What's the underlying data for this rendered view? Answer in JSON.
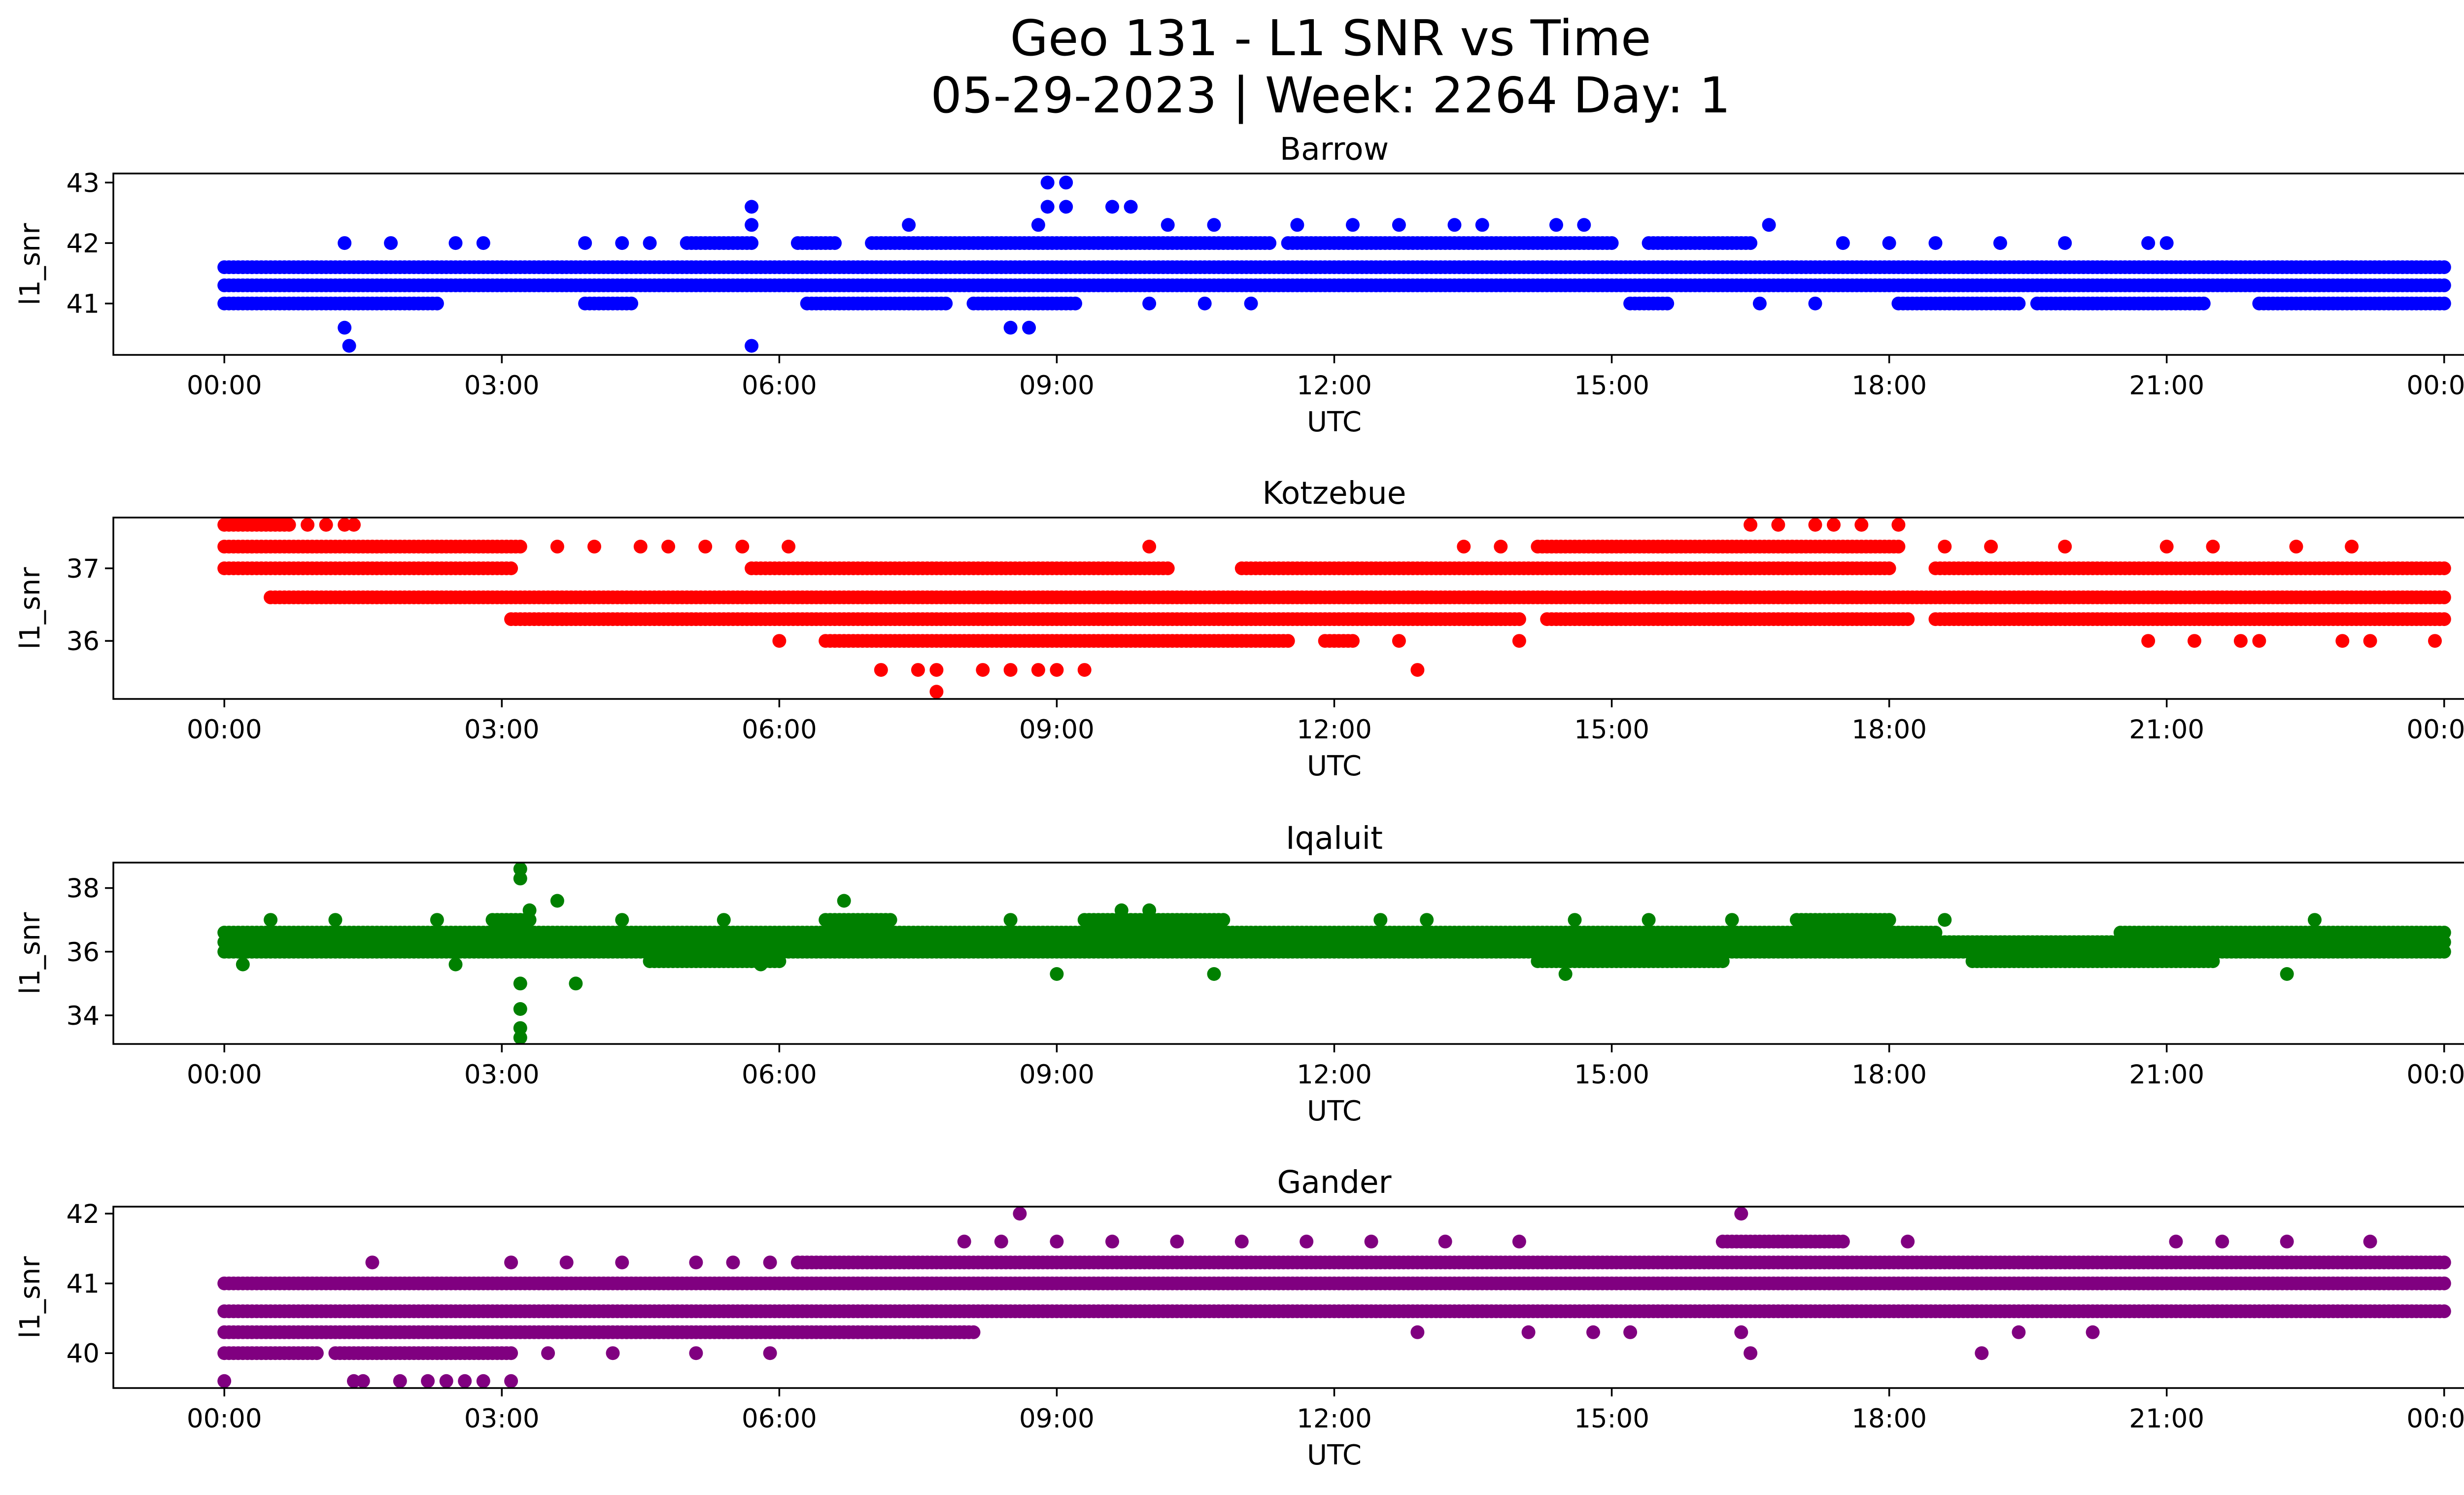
{
  "figure": {
    "title_line1": "Geo 131 - L1 SNR vs Time",
    "title_line2": "05-29-2023 | Week: 2264 Day: 1"
  },
  "chart_data": [
    {
      "type": "scatter",
      "title": "Barrow",
      "xlabel": "UTC",
      "ylabel": "l1_snr",
      "color": "#0000ff",
      "xlim_hours": [
        -1.2,
        25.2
      ],
      "ylim": [
        40.15,
        43.15
      ],
      "xticks": [
        "00:00",
        "03:00",
        "06:00",
        "09:00",
        "12:00",
        "15:00",
        "18:00",
        "21:00",
        "00:00"
      ],
      "yticks": [
        41,
        42,
        43
      ],
      "levels": [
        {
          "y": 41.6,
          "ranges": [
            [
              0.0,
              24.0
            ]
          ]
        },
        {
          "y": 41.3,
          "ranges": [
            [
              0.0,
              24.0
            ]
          ]
        },
        {
          "y": 41.0,
          "ranges": [
            [
              0.0,
              2.3
            ],
            [
              3.9,
              4.4
            ],
            [
              6.3,
              7.8
            ],
            [
              8.1,
              9.2
            ],
            [
              15.2,
              15.6
            ],
            [
              18.1,
              19.4
            ],
            [
              19.6,
              21.4
            ],
            [
              22.0,
              24.0
            ]
          ]
        },
        {
          "y": 42.0,
          "ranges": [
            [
              5.0,
              5.7
            ],
            [
              6.2,
              6.6
            ],
            [
              7.0,
              11.3
            ],
            [
              11.5,
              15.0
            ],
            [
              15.4,
              16.5
            ]
          ]
        }
      ],
      "extra_points": [
        [
          1.3,
          40.6
        ],
        [
          1.35,
          40.3
        ],
        [
          1.3,
          42.0
        ],
        [
          1.8,
          42.0
        ],
        [
          2.5,
          42.0
        ],
        [
          2.8,
          42.0
        ],
        [
          3.9,
          42.0
        ],
        [
          4.3,
          42.0
        ],
        [
          4.6,
          42.0
        ],
        [
          5.7,
          42.6
        ],
        [
          5.7,
          42.3
        ],
        [
          5.7,
          40.3
        ],
        [
          7.4,
          42.3
        ],
        [
          8.5,
          40.6
        ],
        [
          8.7,
          40.6
        ],
        [
          8.8,
          42.3
        ],
        [
          8.9,
          42.6
        ],
        [
          8.9,
          43.0
        ],
        [
          9.1,
          43.0
        ],
        [
          9.1,
          42.6
        ],
        [
          9.6,
          42.6
        ],
        [
          9.8,
          42.6
        ],
        [
          10.2,
          42.3
        ],
        [
          10.7,
          42.3
        ],
        [
          11.6,
          42.3
        ],
        [
          12.2,
          42.3
        ],
        [
          12.7,
          42.3
        ],
        [
          13.3,
          42.3
        ],
        [
          13.6,
          42.3
        ],
        [
          14.4,
          42.3
        ],
        [
          14.7,
          42.3
        ],
        [
          16.7,
          42.3
        ],
        [
          17.5,
          42.0
        ],
        [
          18.0,
          42.0
        ],
        [
          18.5,
          42.0
        ],
        [
          19.2,
          42.0
        ],
        [
          19.9,
          42.0
        ],
        [
          20.8,
          42.0
        ],
        [
          21.0,
          42.0
        ],
        [
          10.0,
          41.0
        ],
        [
          10.6,
          41.0
        ],
        [
          11.1,
          41.0
        ],
        [
          16.6,
          41.0
        ],
        [
          17.2,
          41.0
        ]
      ]
    },
    {
      "type": "scatter",
      "title": "Kotzebue",
      "xlabel": "UTC",
      "ylabel": "l1_snr",
      "color": "#ff0000",
      "xlim_hours": [
        -1.2,
        25.2
      ],
      "ylim": [
        35.2,
        37.7
      ],
      "xticks": [
        "00:00",
        "03:00",
        "06:00",
        "09:00",
        "12:00",
        "15:00",
        "18:00",
        "21:00",
        "00:00"
      ],
      "yticks": [
        36,
        37
      ],
      "levels": [
        {
          "y": 36.6,
          "ranges": [
            [
              0.5,
              24.0
            ]
          ]
        },
        {
          "y": 36.3,
          "ranges": [
            [
              3.1,
              14.0
            ],
            [
              14.3,
              18.2
            ],
            [
              18.5,
              24.0
            ]
          ]
        },
        {
          "y": 37.0,
          "ranges": [
            [
              0.0,
              3.1
            ],
            [
              5.7,
              10.2
            ],
            [
              11.0,
              18.0
            ],
            [
              18.5,
              24.0
            ]
          ]
        },
        {
          "y": 37.3,
          "ranges": [
            [
              0.0,
              3.2
            ],
            [
              14.2,
              18.1
            ]
          ]
        },
        {
          "y": 36.0,
          "ranges": [
            [
              6.5,
              11.5
            ],
            [
              11.9,
              12.2
            ]
          ]
        },
        {
          "y": 37.6,
          "ranges": [
            [
              0.0,
              0.7
            ]
          ]
        }
      ],
      "extra_points": [
        [
          0.9,
          37.6
        ],
        [
          1.1,
          37.6
        ],
        [
          1.3,
          37.6
        ],
        [
          1.4,
          37.6
        ],
        [
          3.6,
          37.3
        ],
        [
          4.0,
          37.3
        ],
        [
          4.5,
          37.3
        ],
        [
          4.8,
          37.3
        ],
        [
          5.2,
          37.3
        ],
        [
          5.6,
          37.3
        ],
        [
          6.1,
          37.3
        ],
        [
          10.0,
          37.3
        ],
        [
          13.4,
          37.3
        ],
        [
          13.8,
          37.3
        ],
        [
          16.5,
          37.6
        ],
        [
          16.8,
          37.6
        ],
        [
          17.2,
          37.6
        ],
        [
          17.4,
          37.6
        ],
        [
          17.7,
          37.6
        ],
        [
          18.1,
          37.6
        ],
        [
          18.6,
          37.3
        ],
        [
          19.1,
          37.3
        ],
        [
          19.9,
          37.3
        ],
        [
          21.0,
          37.3
        ],
        [
          21.5,
          37.3
        ],
        [
          22.4,
          37.3
        ],
        [
          23.0,
          37.3
        ],
        [
          7.1,
          35.6
        ],
        [
          7.5,
          35.6
        ],
        [
          7.7,
          35.3
        ],
        [
          7.7,
          35.6
        ],
        [
          8.2,
          35.6
        ],
        [
          8.5,
          35.6
        ],
        [
          8.8,
          35.6
        ],
        [
          9.0,
          35.6
        ],
        [
          9.3,
          35.6
        ],
        [
          12.9,
          35.6
        ],
        [
          12.7,
          36.0
        ],
        [
          14.0,
          36.0
        ],
        [
          20.8,
          36.0
        ],
        [
          21.3,
          36.0
        ],
        [
          21.8,
          36.0
        ],
        [
          22.0,
          36.0
        ],
        [
          22.9,
          36.0
        ],
        [
          23.2,
          36.0
        ],
        [
          23.9,
          36.0
        ],
        [
          6.0,
          36.0
        ]
      ]
    },
    {
      "type": "scatter",
      "title": "Iqaluit",
      "xlabel": "UTC",
      "ylabel": "l1_snr",
      "color": "#008000",
      "xlim_hours": [
        -1.2,
        25.2
      ],
      "ylim": [
        33.1,
        38.8
      ],
      "xticks": [
        "00:00",
        "03:00",
        "06:00",
        "09:00",
        "12:00",
        "15:00",
        "18:00",
        "21:00",
        "00:00"
      ],
      "yticks": [
        34,
        36,
        38
      ],
      "levels": [
        {
          "y": 36.0,
          "ranges": [
            [
              0.0,
              24.0
            ]
          ]
        },
        {
          "y": 36.3,
          "ranges": [
            [
              0.0,
              24.0
            ]
          ]
        },
        {
          "y": 36.6,
          "ranges": [
            [
              0.0,
              18.5
            ],
            [
              20.5,
              24.0
            ]
          ]
        },
        {
          "y": 35.7,
          "ranges": [
            [
              4.6,
              6.0
            ],
            [
              14.2,
              16.2
            ],
            [
              18.9,
              21.5
            ]
          ]
        },
        {
          "y": 37.0,
          "ranges": [
            [
              2.9,
              3.3
            ],
            [
              6.5,
              7.2
            ],
            [
              9.3,
              10.8
            ],
            [
              17.0,
              18.0
            ]
          ]
        }
      ],
      "extra_points": [
        [
          3.2,
          38.6
        ],
        [
          3.2,
          38.3
        ],
        [
          3.2,
          35.0
        ],
        [
          3.2,
          34.2
        ],
        [
          3.2,
          33.6
        ],
        [
          3.2,
          33.3
        ],
        [
          3.3,
          37.3
        ],
        [
          3.6,
          37.6
        ],
        [
          3.8,
          35.0
        ],
        [
          6.7,
          37.6
        ],
        [
          9.0,
          35.3
        ],
        [
          10.7,
          35.3
        ],
        [
          14.5,
          35.3
        ],
        [
          22.3,
          35.3
        ],
        [
          0.2,
          35.6
        ],
        [
          2.5,
          35.6
        ],
        [
          5.8,
          35.6
        ],
        [
          0.5,
          37.0
        ],
        [
          1.2,
          37.0
        ],
        [
          2.3,
          37.0
        ],
        [
          4.3,
          37.0
        ],
        [
          5.4,
          37.0
        ],
        [
          8.5,
          37.0
        ],
        [
          12.5,
          37.0
        ],
        [
          13.0,
          37.0
        ],
        [
          14.6,
          37.0
        ],
        [
          15.4,
          37.0
        ],
        [
          16.3,
          37.0
        ],
        [
          18.6,
          37.0
        ],
        [
          22.6,
          37.0
        ],
        [
          10.0,
          37.3
        ],
        [
          9.7,
          37.3
        ]
      ]
    },
    {
      "type": "scatter",
      "title": "Gander",
      "xlabel": "UTC",
      "ylabel": "l1_snr",
      "color": "#800080",
      "xlim_hours": [
        -1.2,
        25.2
      ],
      "ylim": [
        39.5,
        42.1
      ],
      "xticks": [
        "00:00",
        "03:00",
        "06:00",
        "09:00",
        "12:00",
        "15:00",
        "18:00",
        "21:00",
        "00:00"
      ],
      "yticks": [
        40,
        41,
        42
      ],
      "levels": [
        {
          "y": 40.6,
          "ranges": [
            [
              0.0,
              24.0
            ]
          ]
        },
        {
          "y": 40.3,
          "ranges": [
            [
              0.0,
              8.1
            ]
          ]
        },
        {
          "y": 41.0,
          "ranges": [
            [
              0.0,
              24.0
            ]
          ]
        },
        {
          "y": 41.3,
          "ranges": [
            [
              6.2,
              24.0
            ]
          ]
        },
        {
          "y": 40.0,
          "ranges": [
            [
              0.0,
              1.0
            ],
            [
              1.2,
              3.1
            ]
          ]
        },
        {
          "y": 41.6,
          "ranges": [
            [
              16.2,
              17.5
            ]
          ]
        }
      ],
      "extra_points": [
        [
          0.0,
          39.6
        ],
        [
          1.4,
          39.6
        ],
        [
          1.5,
          39.6
        ],
        [
          1.9,
          39.6
        ],
        [
          2.2,
          39.6
        ],
        [
          2.4,
          39.6
        ],
        [
          2.6,
          39.6
        ],
        [
          2.8,
          39.6
        ],
        [
          3.1,
          39.6
        ],
        [
          1.6,
          41.3
        ],
        [
          3.1,
          41.3
        ],
        [
          3.7,
          41.3
        ],
        [
          4.3,
          41.3
        ],
        [
          5.1,
          41.3
        ],
        [
          5.5,
          41.3
        ],
        [
          5.9,
          41.3
        ],
        [
          3.5,
          40.0
        ],
        [
          4.2,
          40.0
        ],
        [
          5.1,
          40.0
        ],
        [
          5.9,
          40.0
        ],
        [
          8.0,
          41.6
        ],
        [
          8.4,
          41.6
        ],
        [
          8.6,
          42.0
        ],
        [
          9.0,
          41.6
        ],
        [
          9.6,
          41.6
        ],
        [
          10.3,
          41.6
        ],
        [
          11.0,
          41.6
        ],
        [
          11.7,
          41.6
        ],
        [
          12.4,
          41.6
        ],
        [
          13.2,
          41.6
        ],
        [
          14.0,
          41.6
        ],
        [
          16.4,
          42.0
        ],
        [
          18.2,
          41.6
        ],
        [
          21.1,
          41.6
        ],
        [
          21.6,
          41.6
        ],
        [
          22.3,
          41.6
        ],
        [
          23.2,
          41.6
        ],
        [
          12.9,
          40.3
        ],
        [
          14.1,
          40.3
        ],
        [
          14.8,
          40.3
        ],
        [
          15.2,
          40.3
        ],
        [
          16.4,
          40.3
        ],
        [
          16.5,
          40.0
        ],
        [
          19.0,
          40.0
        ],
        [
          19.4,
          40.3
        ],
        [
          20.2,
          40.3
        ],
        [
          8.0,
          40.3
        ]
      ]
    }
  ]
}
